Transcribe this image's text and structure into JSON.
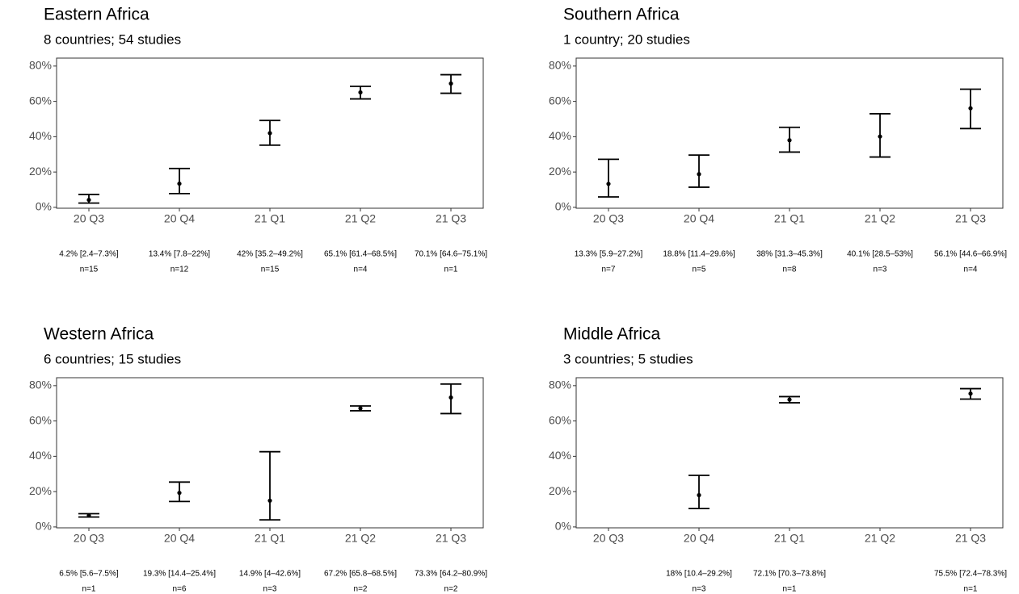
{
  "chart_data": [
    {
      "type": "errorbar",
      "title": "Eastern Africa",
      "subtitle": "8 countries; 54 studies",
      "categories": [
        "20 Q3",
        "20 Q4",
        "21 Q1",
        "21 Q2",
        "21 Q3"
      ],
      "values": [
        4.2,
        13.4,
        42,
        65.1,
        70.1
      ],
      "lower": [
        2.4,
        7.8,
        35.2,
        61.4,
        64.6
      ],
      "upper": [
        7.3,
        22,
        49.2,
        68.5,
        75.1
      ],
      "value_labels": [
        "4.2% [2.4–7.3%]",
        "13.4% [7.8–22%]",
        "42% [35.2–49.2%]",
        "65.1% [61.4–68.5%]",
        "70.1% [64.6–75.1%]"
      ],
      "n_labels": [
        "n=15",
        "n=12",
        "n=15",
        "n=4",
        "n=1"
      ],
      "color": "#000000",
      "ylim": [
        -0.5,
        84.5
      ],
      "yticks": [
        {
          "value": 0,
          "label": "0%"
        },
        {
          "value": 20,
          "label": "20%"
        },
        {
          "value": 40,
          "label": "40%"
        },
        {
          "value": 60,
          "label": "60%"
        },
        {
          "value": 80,
          "label": "80%"
        }
      ]
    },
    {
      "type": "errorbar",
      "title": "Southern Africa",
      "subtitle": "1 country; 20 studies",
      "categories": [
        "20 Q3",
        "20 Q4",
        "21 Q1",
        "21 Q2",
        "21 Q3"
      ],
      "values": [
        13.3,
        18.8,
        38,
        40.1,
        56.1
      ],
      "lower": [
        5.9,
        11.4,
        31.3,
        28.5,
        44.6
      ],
      "upper": [
        27.2,
        29.6,
        45.3,
        53,
        66.9
      ],
      "value_labels": [
        "13.3% [5.9–27.2%]",
        "18.8% [11.4–29.6%]",
        "38% [31.3–45.3%]",
        "40.1% [28.5–53%]",
        "56.1% [44.6–66.9%]"
      ],
      "n_labels": [
        "n=7",
        "n=5",
        "n=8",
        "n=3",
        "n=4"
      ],
      "color": "#000000",
      "ylim": [
        -0.5,
        84.5
      ],
      "yticks": [
        {
          "value": 0,
          "label": "0%"
        },
        {
          "value": 20,
          "label": "20%"
        },
        {
          "value": 40,
          "label": "40%"
        },
        {
          "value": 60,
          "label": "60%"
        },
        {
          "value": 80,
          "label": "80%"
        }
      ]
    },
    {
      "type": "errorbar",
      "title": "Western Africa",
      "subtitle": "6 countries; 15 studies",
      "categories": [
        "20 Q3",
        "20 Q4",
        "21 Q1",
        "21 Q2",
        "21 Q3"
      ],
      "values": [
        6.5,
        19.3,
        14.9,
        67.2,
        73.3
      ],
      "lower": [
        5.6,
        14.4,
        4,
        65.8,
        64.2
      ],
      "upper": [
        7.5,
        25.4,
        42.6,
        68.5,
        80.9
      ],
      "value_labels": [
        "6.5% [5.6–7.5%]",
        "19.3% [14.4–25.4%]",
        "14.9% [4–42.6%]",
        "67.2% [65.8–68.5%]",
        "73.3% [64.2–80.9%]"
      ],
      "n_labels": [
        "n=1",
        "n=6",
        "n=3",
        "n=2",
        "n=2"
      ],
      "color": "#000000",
      "ylim": [
        -0.5,
        84.5
      ],
      "yticks": [
        {
          "value": 0,
          "label": "0%"
        },
        {
          "value": 20,
          "label": "20%"
        },
        {
          "value": 40,
          "label": "40%"
        },
        {
          "value": 60,
          "label": "60%"
        },
        {
          "value": 80,
          "label": "80%"
        }
      ]
    },
    {
      "type": "errorbar",
      "title": "Middle Africa",
      "subtitle": "3 countries; 5 studies",
      "categories": [
        "20 Q3",
        "20 Q4",
        "21 Q1",
        "21 Q2",
        "21 Q3"
      ],
      "values": [
        null,
        18,
        72.1,
        null,
        75.5
      ],
      "lower": [
        null,
        10.4,
        70.3,
        null,
        72.4
      ],
      "upper": [
        null,
        29.2,
        73.8,
        null,
        78.3
      ],
      "value_labels": [
        null,
        "18% [10.4–29.2%]",
        "72.1% [70.3–73.8%]",
        null,
        "75.5% [72.4–78.3%]"
      ],
      "n_labels": [
        null,
        "n=3",
        "n=1",
        null,
        "n=1"
      ],
      "color": "#000000",
      "ylim": [
        -0.5,
        84.5
      ],
      "yticks": [
        {
          "value": 0,
          "label": "0%"
        },
        {
          "value": 20,
          "label": "20%"
        },
        {
          "value": 40,
          "label": "40%"
        },
        {
          "value": 60,
          "label": "60%"
        },
        {
          "value": 80,
          "label": "80%"
        }
      ]
    }
  ]
}
